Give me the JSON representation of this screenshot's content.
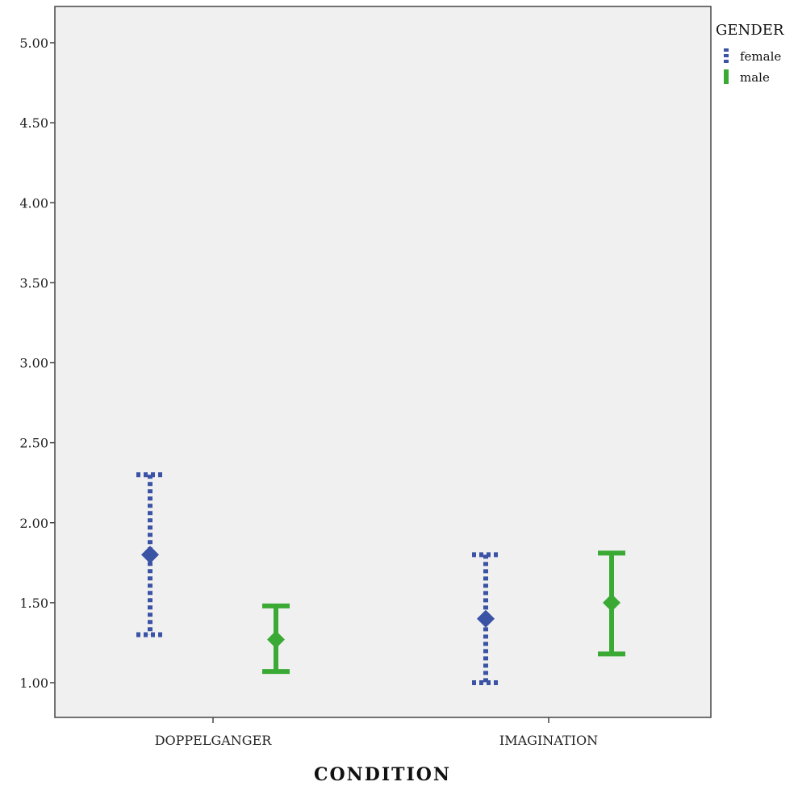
{
  "chart_data": {
    "type": "errorbar",
    "xlabel": "CONDITION",
    "ylabel": "",
    "categories": [
      "DOPPELGANGER",
      "IMAGINATION"
    ],
    "ylim": [
      0.8,
      5.2
    ],
    "yticks": [
      "1.00",
      "1.50",
      "2.00",
      "2.50",
      "3.00",
      "3.50",
      "4.00",
      "4.50",
      "5.00"
    ],
    "grid": false,
    "legend": {
      "title": "GENDER",
      "position": "top-right-outside"
    },
    "series": [
      {
        "name": "female",
        "color": "#3a53a4",
        "style": "dotted",
        "points": [
          {
            "category": "DOPPELGANGER",
            "mean": 1.8,
            "lower": 1.3,
            "upper": 2.3
          },
          {
            "category": "IMAGINATION",
            "mean": 1.4,
            "lower": 1.0,
            "upper": 1.8
          }
        ]
      },
      {
        "name": "male",
        "color": "#3aaa35",
        "style": "solid",
        "points": [
          {
            "category": "DOPPELGANGER",
            "mean": 1.27,
            "lower": 1.07,
            "upper": 1.48
          },
          {
            "category": "IMAGINATION",
            "mean": 1.5,
            "lower": 1.18,
            "upper": 1.81
          }
        ]
      }
    ]
  }
}
